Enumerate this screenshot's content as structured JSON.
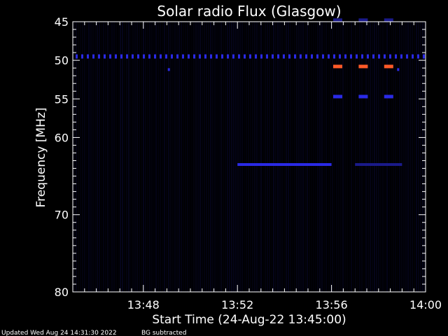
{
  "chart_data": {
    "type": "heatmap",
    "title": "Solar radio Flux (Glasgow)",
    "xlabel": "Start Time (24-Aug-22 13:45:00)",
    "ylabel": "Frequency [MHz]",
    "xlim": [
      "13:45",
      "14:00"
    ],
    "ylim": [
      45,
      80
    ],
    "y_inverted": true,
    "x_ticks": [
      "13:48",
      "13:52",
      "13:56",
      "14:00"
    ],
    "y_ticks": [
      45,
      50,
      55,
      60,
      70,
      80
    ],
    "grid": false,
    "colors": {
      "background": "#000000",
      "axes": "#ffffff",
      "noise": "#0a0a3a",
      "faint": "#1a1a8a",
      "medium": "#2a2ae6",
      "bright": "#ff5a28"
    },
    "features": [
      {
        "name": "interference-band",
        "freq_mhz": 49.5,
        "from": "13:45",
        "to": "14:00",
        "intensity": "medium",
        "pattern": "dashed"
      },
      {
        "name": "burst-band-1",
        "freq_mhz": 63.5,
        "from": "13:52",
        "to": "13:56",
        "intensity": "medium",
        "pattern": "solid"
      },
      {
        "name": "burst-band-2",
        "freq_mhz": 63.5,
        "from": "13:57",
        "to": "13:59",
        "intensity": "faint",
        "pattern": "solid"
      },
      {
        "name": "hot-marks",
        "freq_mhz": 50.8,
        "times": [
          "13:56:15",
          "13:57:20",
          "13:58:25"
        ],
        "intensity": "bright"
      },
      {
        "name": "blue-marks-55",
        "freq_mhz": 54.7,
        "times": [
          "13:56:15",
          "13:57:20",
          "13:58:25"
        ],
        "intensity": "medium"
      },
      {
        "name": "blue-marks-45",
        "freq_mhz": 44.8,
        "times": [
          "13:56:15",
          "13:57:20",
          "13:58:25"
        ],
        "intensity": "faint"
      },
      {
        "name": "dots",
        "points": [
          [
            "13:49:05",
            51.2
          ],
          [
            "13:58:50",
            51.2
          ]
        ],
        "intensity": "medium"
      }
    ]
  },
  "footer": {
    "updated": "Updated Wed Aug 24 14:31:30 2022",
    "bg": "BG subtracted"
  }
}
